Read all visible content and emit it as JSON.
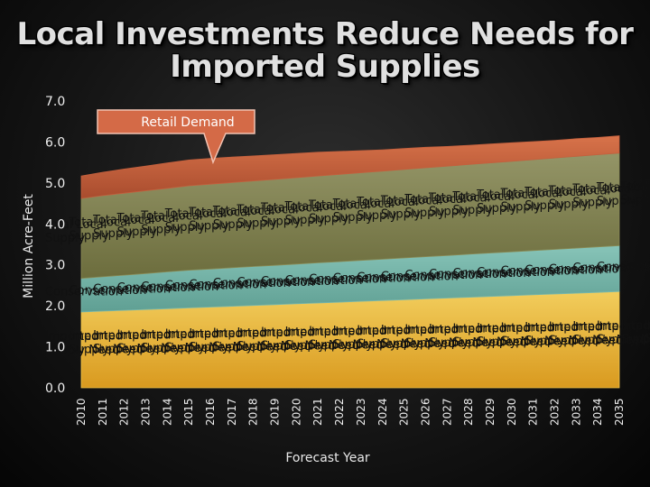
{
  "title_lines": [
    "Local Investments Reduce Needs for",
    "Imported Supplies"
  ],
  "chart_data": {
    "type": "area",
    "stacked": true,
    "xlabel": "Forecast Year",
    "ylabel": "Million Acre-Feet",
    "ylim": [
      0,
      7
    ],
    "y_ticks": [
      "0.0",
      "1.0",
      "2.0",
      "3.0",
      "4.0",
      "5.0",
      "6.0",
      "7.0"
    ],
    "x": [
      "2010",
      "2011",
      "2012",
      "2013",
      "2014",
      "2015",
      "2016",
      "2017",
      "2018",
      "2019",
      "2020",
      "2021",
      "2022",
      "2023",
      "2024",
      "2025",
      "2026",
      "2027",
      "2028",
      "2029",
      "2030",
      "2031",
      "2032",
      "2033",
      "2034",
      "2035"
    ],
    "series": [
      {
        "name": "Imported Supply Need",
        "color": "#eec34a",
        "values": [
          1.85,
          1.87,
          1.89,
          1.91,
          1.93,
          1.95,
          1.97,
          1.99,
          2.01,
          2.03,
          2.05,
          2.07,
          2.09,
          2.11,
          2.13,
          2.15,
          2.17,
          2.19,
          2.21,
          2.23,
          2.25,
          2.27,
          2.29,
          2.31,
          2.33,
          2.35
        ]
      },
      {
        "name": "Conservation",
        "color": "#7ab9ad",
        "values": [
          0.82,
          0.84,
          0.86,
          0.88,
          0.9,
          0.92,
          0.93,
          0.94,
          0.95,
          0.96,
          0.97,
          0.98,
          0.99,
          1.0,
          1.01,
          1.02,
          1.03,
          1.04,
          1.05,
          1.06,
          1.07,
          1.08,
          1.09,
          1.1,
          1.11,
          1.12
        ]
      },
      {
        "name": "Total Local Supply",
        "color": "#8a8b55",
        "values": [
          1.95,
          1.98,
          2.0,
          2.02,
          2.04,
          2.06,
          2.07,
          2.08,
          2.09,
          2.1,
          2.11,
          2.12,
          2.13,
          2.14,
          2.15,
          2.16,
          2.17,
          2.18,
          2.19,
          2.2,
          2.21,
          2.22,
          2.23,
          2.24,
          2.25,
          2.26
        ]
      },
      {
        "name": "Retail Demand",
        "color": "#c4603e",
        "values": [
          0.55,
          0.57,
          0.59,
          0.6,
          0.62,
          0.63,
          0.63,
          0.62,
          0.61,
          0.6,
          0.59,
          0.58,
          0.56,
          0.54,
          0.52,
          0.51,
          0.5,
          0.48,
          0.47,
          0.46,
          0.45,
          0.44,
          0.43,
          0.43,
          0.42,
          0.42
        ]
      }
    ],
    "area_labels": {
      "imported": [
        "Imported",
        "Supply Need"
      ],
      "conservation": [
        "Conservation"
      ],
      "local": [
        "Total Local",
        "Supply"
      ]
    },
    "callout": "Retail Demand",
    "grid": false,
    "legend": "none"
  }
}
